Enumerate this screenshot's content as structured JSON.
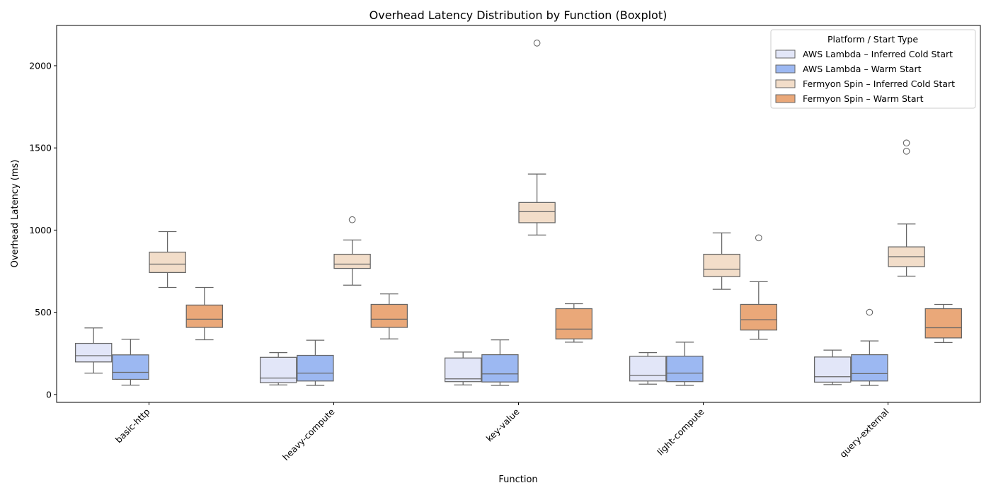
{
  "chart_data": {
    "type": "boxplot",
    "title": "Overhead Latency Distribution by Function (Boxplot)",
    "xlabel": "Function",
    "ylabel": "Overhead Latency (ms)",
    "ylim": [
      -48,
      2245
    ],
    "yticks": [
      0,
      500,
      1000,
      1500,
      2000
    ],
    "categories": [
      "basic-http",
      "heavy-compute",
      "key-value",
      "light-compute",
      "query-external"
    ],
    "legend": {
      "title": "Platform / Start Type",
      "placement": "top-right"
    },
    "grid": false,
    "series": [
      {
        "name": "AWS Lambda – Inferred Cold Start",
        "color": "#e2e6f8",
        "boxes": [
          {
            "whislo": 130,
            "q1": 198,
            "med": 236,
            "q3": 311,
            "whishi": 405,
            "fliers": []
          },
          {
            "whislo": 58,
            "q1": 72,
            "med": 100,
            "q3": 226,
            "whishi": 255,
            "fliers": []
          },
          {
            "whislo": 58,
            "q1": 78,
            "med": 95,
            "q3": 222,
            "whishi": 258,
            "fliers": []
          },
          {
            "whislo": 63,
            "q1": 82,
            "med": 117,
            "q3": 232,
            "whishi": 255,
            "fliers": []
          },
          {
            "whislo": 60,
            "q1": 75,
            "med": 108,
            "q3": 228,
            "whishi": 270,
            "fliers": []
          }
        ]
      },
      {
        "name": "AWS Lambda – Warm Start",
        "color": "#9cb8f2",
        "boxes": [
          {
            "whislo": 57,
            "q1": 92,
            "med": 135,
            "q3": 241,
            "whishi": 336,
            "fliers": []
          },
          {
            "whislo": 55,
            "q1": 82,
            "med": 130,
            "q3": 238,
            "whishi": 330,
            "fliers": []
          },
          {
            "whislo": 55,
            "q1": 76,
            "med": 125,
            "q3": 242,
            "whishi": 332,
            "fliers": []
          },
          {
            "whislo": 55,
            "q1": 78,
            "med": 130,
            "q3": 233,
            "whishi": 318,
            "fliers": []
          },
          {
            "whislo": 55,
            "q1": 82,
            "med": 127,
            "q3": 242,
            "whishi": 326,
            "fliers": [
              500
            ]
          }
        ]
      },
      {
        "name": "Fermyon Spin – Inferred Cold Start",
        "color": "#f2ddc9",
        "boxes": [
          {
            "whislo": 651,
            "q1": 742,
            "med": 793,
            "q3": 866,
            "whishi": 991,
            "fliers": []
          },
          {
            "whislo": 665,
            "q1": 767,
            "med": 793,
            "q3": 853,
            "whishi": 940,
            "fliers": [
              1063
            ]
          },
          {
            "whislo": 970,
            "q1": 1045,
            "med": 1112,
            "q3": 1168,
            "whishi": 1341,
            "fliers": [
              2138
            ]
          },
          {
            "whislo": 640,
            "q1": 717,
            "med": 762,
            "q3": 853,
            "whishi": 983,
            "fliers": []
          },
          {
            "whislo": 720,
            "q1": 778,
            "med": 838,
            "q3": 898,
            "whishi": 1037,
            "fliers": [
              1480,
              1530
            ]
          }
        ]
      },
      {
        "name": "Fermyon Spin – Warm Start",
        "color": "#eaa879",
        "boxes": [
          {
            "whislo": 333,
            "q1": 408,
            "med": 458,
            "q3": 544,
            "whishi": 651,
            "fliers": []
          },
          {
            "whislo": 338,
            "q1": 408,
            "med": 458,
            "q3": 548,
            "whishi": 612,
            "fliers": []
          },
          {
            "whislo": 318,
            "q1": 338,
            "med": 398,
            "q3": 522,
            "whishi": 552,
            "fliers": []
          },
          {
            "whislo": 336,
            "q1": 392,
            "med": 455,
            "q3": 548,
            "whishi": 686,
            "fliers": [
              953
            ]
          },
          {
            "whislo": 316,
            "q1": 344,
            "med": 406,
            "q3": 522,
            "whishi": 548,
            "fliers": []
          }
        ]
      }
    ]
  }
}
